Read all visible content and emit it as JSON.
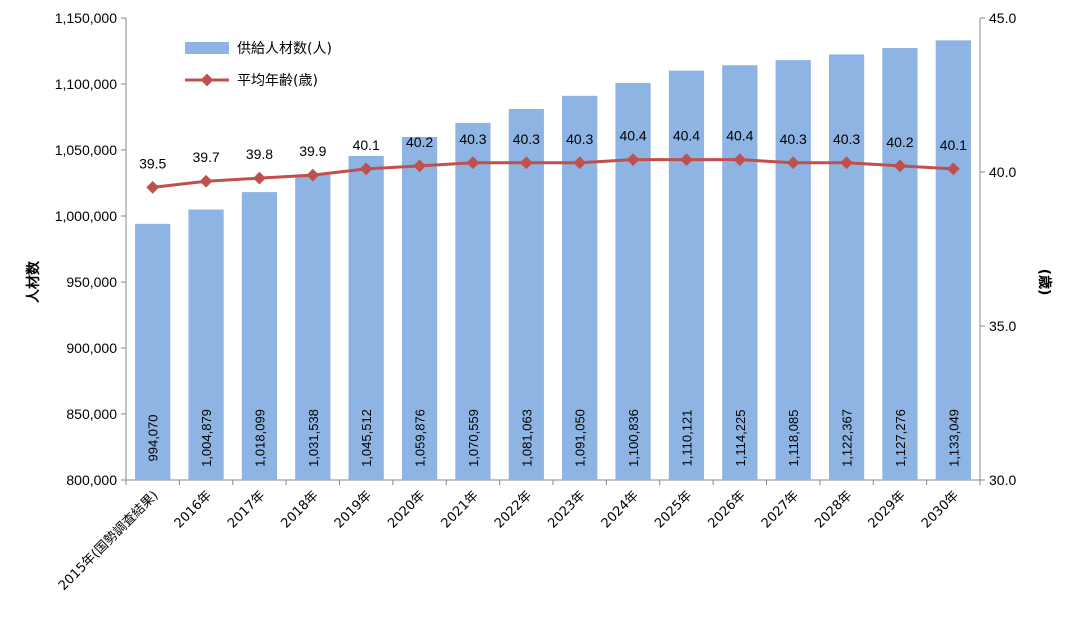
{
  "chart_data": {
    "type": "bar+line",
    "categories": [
      "2015年(国勢調査結果)",
      "2016年",
      "2017年",
      "2018年",
      "2019年",
      "2020年",
      "2021年",
      "2022年",
      "2023年",
      "2024年",
      "2025年",
      "2026年",
      "2027年",
      "2028年",
      "2029年",
      "2030年"
    ],
    "series": [
      {
        "name": "供給人材数(人)",
        "type": "bar",
        "axis": "left",
        "color": "#8db4e2",
        "values": [
          994070,
          1004879,
          1018099,
          1031538,
          1045512,
          1059876,
          1070559,
          1081063,
          1091050,
          1100836,
          1110121,
          1114225,
          1118085,
          1122367,
          1127276,
          1133049
        ],
        "labels": [
          "994,070",
          "1,004,879",
          "1,018,099",
          "1,031,538",
          "1,045,512",
          "1,059,876",
          "1,070,559",
          "1,081,063",
          "1,091,050",
          "1,100,836",
          "1,110,121",
          "1,114,225",
          "1,118,085",
          "1,122,367",
          "1,127,276",
          "1,133,049"
        ]
      },
      {
        "name": "平均年齢(歳)",
        "type": "line",
        "axis": "right",
        "color": "#c0504d",
        "values": [
          39.5,
          39.7,
          39.8,
          39.9,
          40.1,
          40.2,
          40.3,
          40.3,
          40.3,
          40.4,
          40.4,
          40.4,
          40.3,
          40.3,
          40.2,
          40.1
        ],
        "labels": [
          "39.5",
          "39.7",
          "39.8",
          "39.9",
          "40.1",
          "40.2",
          "40.3",
          "40.3",
          "40.3",
          "40.4",
          "40.4",
          "40.4",
          "40.3",
          "40.3",
          "40.2",
          "40.1"
        ]
      }
    ],
    "ylabel": "人材数",
    "y2label": "(歳)",
    "ylim": [
      800000,
      1150000
    ],
    "y2lim": [
      30.0,
      45.0
    ],
    "yticks": [
      "800,000",
      "850,000",
      "900,000",
      "950,000",
      "1,000,000",
      "1,050,000",
      "1,100,000",
      "1,150,000"
    ],
    "y2ticks": [
      "30.0",
      "35.0",
      "40.0",
      "45.0"
    ],
    "legend": "top-left",
    "grid": false
  }
}
